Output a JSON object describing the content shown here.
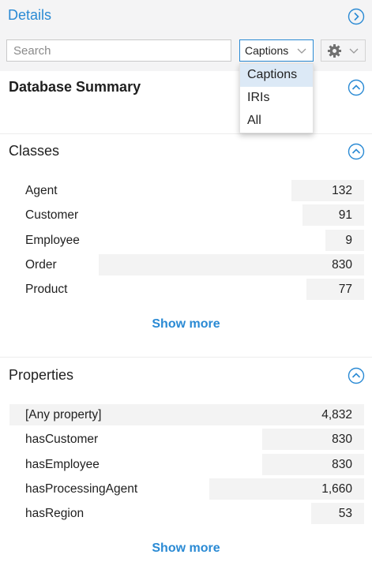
{
  "header": {
    "title": "Details",
    "search_placeholder": "Search",
    "label_mode": "Captions"
  },
  "dropdown": {
    "options": [
      "Captions",
      "IRIs",
      "All"
    ],
    "selected": "Captions"
  },
  "database_summary": {
    "title": "Database Summary"
  },
  "classes": {
    "title": "Classes",
    "items": [
      {
        "label": "Agent",
        "count": "132",
        "fraction": 0.159
      },
      {
        "label": "Customer",
        "count": "91",
        "fraction": 0.11
      },
      {
        "label": "Employee",
        "count": "9",
        "fraction": 0.011
      },
      {
        "label": "Order",
        "count": "830",
        "fraction": 1.0
      },
      {
        "label": "Product",
        "count": "77",
        "fraction": 0.093
      }
    ],
    "show_more": "Show more"
  },
  "properties": {
    "title": "Properties",
    "items": [
      {
        "label": "[Any property]",
        "count": "4,832",
        "fraction": 1.0
      },
      {
        "label": "hasCustomer",
        "count": "830",
        "fraction": 0.172
      },
      {
        "label": "hasEmployee",
        "count": "830",
        "fraction": 0.172
      },
      {
        "label": "hasProcessingAgent",
        "count": "1,660",
        "fraction": 0.344
      },
      {
        "label": "hasRegion",
        "count": "53",
        "fraction": 0.011
      }
    ],
    "show_more": "Show more"
  },
  "colors": {
    "accent": "#2a8ad4",
    "header_bg": "#f4f4f5",
    "bar_bg": "#f3f3f3",
    "selected_option_bg": "#dce9f6"
  }
}
